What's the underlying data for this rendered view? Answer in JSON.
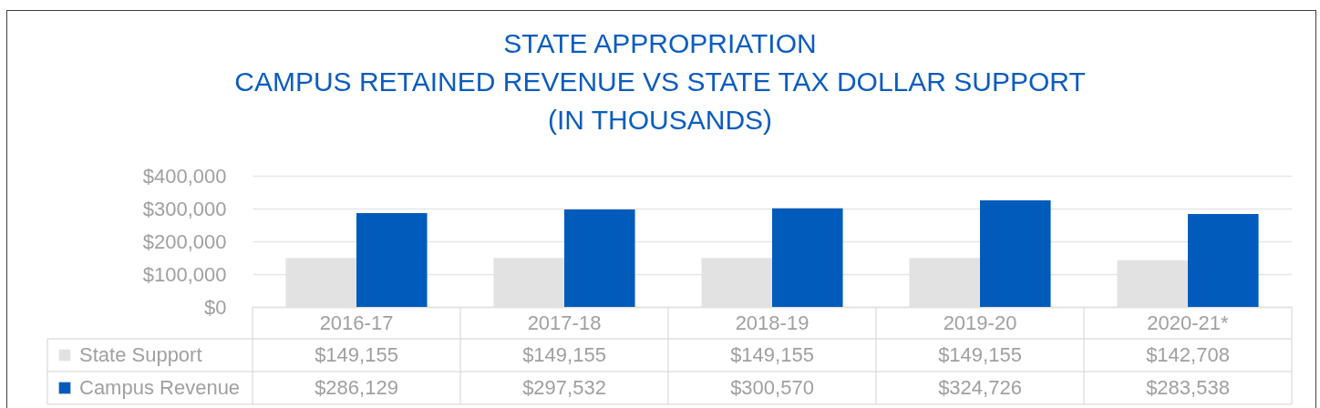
{
  "chart_data": {
    "type": "bar",
    "title": "STATE APPROPRIATION\nCAMPUS RETAINED REVENUE VS STATE TAX DOLLAR SUPPORT\n(IN THOUSANDS)",
    "categories": [
      "2016-17",
      "2017-18",
      "2018-19",
      "2019-20",
      "2020-21*"
    ],
    "series": [
      {
        "name": "State Support",
        "color": "#e2e2e2",
        "values": [
          149155,
          149155,
          149155,
          149155,
          142708
        ],
        "value_labels": [
          "$149,155",
          "$149,155",
          "$149,155",
          "$149,155",
          "$142,708"
        ]
      },
      {
        "name": "Campus Revenue",
        "color": "#005bbb",
        "values": [
          286129,
          297532,
          300570,
          324726,
          283538
        ],
        "value_labels": [
          "$286,129",
          "$297,532",
          "$300,570",
          "$324,726",
          "$283,538"
        ]
      }
    ],
    "ylim": [
      0,
      400000
    ],
    "yticks": [
      {
        "value": 0,
        "label": "$0"
      },
      {
        "value": 100000,
        "label": "$100,000"
      },
      {
        "value": 200000,
        "label": "$200,000"
      },
      {
        "value": 300000,
        "label": "$300,000"
      },
      {
        "value": 400000,
        "label": "$400,000"
      }
    ],
    "grid": "y",
    "legend": "bottom left"
  }
}
